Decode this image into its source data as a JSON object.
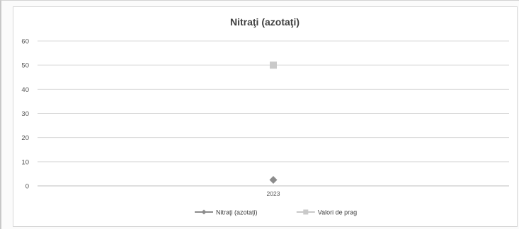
{
  "chart_data": {
    "type": "line",
    "title": "Nitraţi (azotaţi)",
    "xlabel": "",
    "ylabel": "",
    "categories": [
      "2023"
    ],
    "ylim": [
      0,
      60
    ],
    "yticks": [
      "0",
      "10",
      "20",
      "30",
      "40",
      "50",
      "60"
    ],
    "grid": true,
    "legend_position": "bottom",
    "series": [
      {
        "name": "Nitraţi (azotaţi)",
        "values": [
          2.5
        ],
        "color": "#8c8c8c",
        "marker": "diamond"
      },
      {
        "name": "Valori de prag",
        "values": [
          50
        ],
        "color": "#c9c9c9",
        "marker": "square"
      }
    ]
  }
}
